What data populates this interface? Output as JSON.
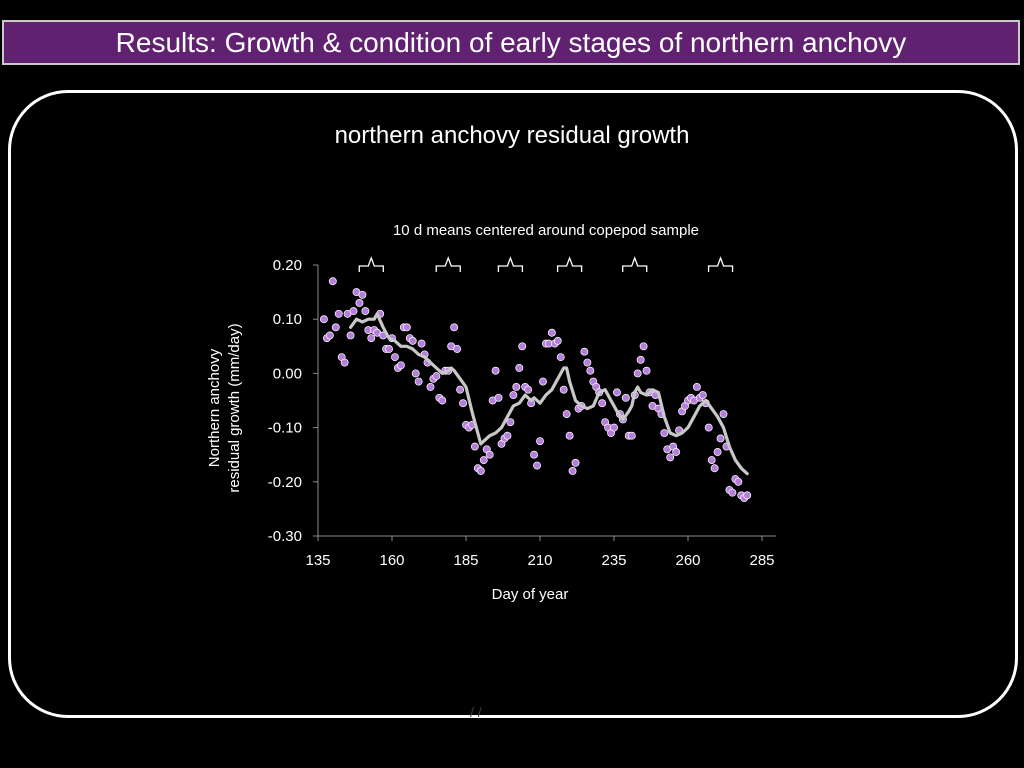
{
  "header": {
    "title": "Results: Growth & condition of early stages of northern anchovy"
  },
  "chart_data": {
    "type": "scatter",
    "title": "northern anchovy residual growth",
    "annotation": "10 d means centered around copepod sample",
    "xlabel": "Day of year",
    "ylabel_lines": [
      "Northern anchovy",
      "residual growth (mm/day)"
    ],
    "xlim": [
      135,
      285
    ],
    "ylim": [
      -0.3,
      0.2
    ],
    "xticks": [
      135,
      160,
      185,
      210,
      235,
      260,
      285
    ],
    "yticks": [
      0.2,
      0.1,
      0.0,
      -0.1,
      -0.2,
      -0.3
    ],
    "ytick_labels": [
      "0.20",
      "0.10",
      "0.00",
      "-0.10",
      "-0.20",
      "-0.30"
    ],
    "grid": false,
    "bracket_centers": [
      153,
      179,
      200,
      220,
      242,
      271
    ],
    "series": [
      {
        "type": "scatter",
        "color": "#b57edc",
        "points": [
          [
            137,
            0.1
          ],
          [
            138,
            0.065
          ],
          [
            139,
            0.07
          ],
          [
            140,
            0.17
          ],
          [
            141,
            0.085
          ],
          [
            142,
            0.11
          ],
          [
            143,
            0.03
          ],
          [
            144,
            0.02
          ],
          [
            145,
            0.11
          ],
          [
            146,
            0.07
          ],
          [
            147,
            0.115
          ],
          [
            148,
            0.15
          ],
          [
            149,
            0.13
          ],
          [
            150,
            0.145
          ],
          [
            151,
            0.115
          ],
          [
            152,
            0.08
          ],
          [
            153,
            0.065
          ],
          [
            154,
            0.08
          ],
          [
            155,
            0.075
          ],
          [
            156,
            0.11
          ],
          [
            157,
            0.07
          ],
          [
            158,
            0.045
          ],
          [
            159,
            0.045
          ],
          [
            160,
            0.065
          ],
          [
            161,
            0.03
          ],
          [
            162,
            0.01
          ],
          [
            163,
            0.015
          ],
          [
            164,
            0.085
          ],
          [
            165,
            0.085
          ],
          [
            166,
            0.065
          ],
          [
            167,
            0.06
          ],
          [
            168,
            0.0
          ],
          [
            169,
            -0.015
          ],
          [
            170,
            0.055
          ],
          [
            171,
            0.035
          ],
          [
            172,
            0.02
          ],
          [
            173,
            -0.025
          ],
          [
            174,
            -0.01
          ],
          [
            175,
            -0.005
          ],
          [
            176,
            -0.045
          ],
          [
            177,
            -0.05
          ],
          [
            178,
            0.005
          ],
          [
            179,
            0.005
          ],
          [
            180,
            0.05
          ],
          [
            181,
            0.085
          ],
          [
            182,
            0.045
          ],
          [
            183,
            -0.03
          ],
          [
            184,
            -0.055
          ],
          [
            185,
            -0.095
          ],
          [
            186,
            -0.1
          ],
          [
            187,
            -0.095
          ],
          [
            188,
            -0.135
          ],
          [
            189,
            -0.175
          ],
          [
            190,
            -0.18
          ],
          [
            191,
            -0.16
          ],
          [
            192,
            -0.14
          ],
          [
            193,
            -0.15
          ],
          [
            194,
            -0.05
          ],
          [
            195,
            0.005
          ],
          [
            196,
            -0.045
          ],
          [
            197,
            -0.13
          ],
          [
            198,
            -0.12
          ],
          [
            199,
            -0.115
          ],
          [
            200,
            -0.09
          ],
          [
            201,
            -0.04
          ],
          [
            202,
            -0.025
          ],
          [
            203,
            0.01
          ],
          [
            204,
            0.05
          ],
          [
            205,
            -0.025
          ],
          [
            206,
            -0.03
          ],
          [
            207,
            -0.055
          ],
          [
            208,
            -0.15
          ],
          [
            209,
            -0.17
          ],
          [
            210,
            -0.125
          ],
          [
            211,
            -0.015
          ],
          [
            212,
            0.055
          ],
          [
            213,
            0.055
          ],
          [
            214,
            0.075
          ],
          [
            215,
            0.055
          ],
          [
            216,
            0.06
          ],
          [
            217,
            0.03
          ],
          [
            218,
            -0.03
          ],
          [
            219,
            -0.075
          ],
          [
            220,
            -0.115
          ],
          [
            221,
            -0.18
          ],
          [
            222,
            -0.165
          ],
          [
            223,
            -0.065
          ],
          [
            224,
            -0.06
          ],
          [
            225,
            0.04
          ],
          [
            226,
            0.02
          ],
          [
            227,
            0.005
          ],
          [
            228,
            -0.015
          ],
          [
            229,
            -0.025
          ],
          [
            230,
            -0.035
          ],
          [
            231,
            -0.055
          ],
          [
            232,
            -0.09
          ],
          [
            233,
            -0.1
          ],
          [
            234,
            -0.11
          ],
          [
            235,
            -0.1
          ],
          [
            236,
            -0.035
          ],
          [
            237,
            -0.075
          ],
          [
            238,
            -0.085
          ],
          [
            239,
            -0.045
          ],
          [
            240,
            -0.115
          ],
          [
            241,
            -0.115
          ],
          [
            242,
            -0.04
          ],
          [
            243,
            0.0
          ],
          [
            244,
            0.025
          ],
          [
            245,
            0.05
          ],
          [
            246,
            0.005
          ],
          [
            247,
            -0.035
          ],
          [
            248,
            -0.06
          ],
          [
            249,
            -0.04
          ],
          [
            250,
            -0.065
          ],
          [
            251,
            -0.075
          ],
          [
            252,
            -0.11
          ],
          [
            253,
            -0.14
          ],
          [
            254,
            -0.155
          ],
          [
            255,
            -0.135
          ],
          [
            256,
            -0.145
          ],
          [
            257,
            -0.105
          ],
          [
            258,
            -0.07
          ],
          [
            259,
            -0.06
          ],
          [
            260,
            -0.05
          ],
          [
            261,
            -0.045
          ],
          [
            262,
            -0.05
          ],
          [
            263,
            -0.025
          ],
          [
            264,
            -0.045
          ],
          [
            265,
            -0.04
          ],
          [
            266,
            -0.055
          ],
          [
            267,
            -0.1
          ],
          [
            268,
            -0.16
          ],
          [
            269,
            -0.175
          ],
          [
            270,
            -0.145
          ],
          [
            271,
            -0.12
          ],
          [
            272,
            -0.075
          ],
          [
            273,
            -0.135
          ],
          [
            274,
            -0.215
          ],
          [
            275,
            -0.22
          ],
          [
            276,
            -0.195
          ],
          [
            277,
            -0.2
          ],
          [
            278,
            -0.225
          ],
          [
            279,
            -0.23
          ],
          [
            280,
            -0.225
          ]
        ]
      },
      {
        "type": "line",
        "color": "#c8c8c8",
        "points": [
          [
            146,
            0.085
          ],
          [
            148,
            0.1
          ],
          [
            150,
            0.095
          ],
          [
            152,
            0.1
          ],
          [
            154,
            0.1
          ],
          [
            155,
            0.11
          ],
          [
            157,
            0.085
          ],
          [
            159,
            0.065
          ],
          [
            161,
            0.06
          ],
          [
            163,
            0.05
          ],
          [
            165,
            0.05
          ],
          [
            167,
            0.045
          ],
          [
            169,
            0.035
          ],
          [
            171,
            0.03
          ],
          [
            173,
            0.02
          ],
          [
            175,
            0.01
          ],
          [
            177,
            0.0
          ],
          [
            179,
            0.005
          ],
          [
            180,
            0.01
          ],
          [
            181,
            0.005
          ],
          [
            183,
            -0.01
          ],
          [
            185,
            -0.025
          ],
          [
            187,
            -0.07
          ],
          [
            189,
            -0.11
          ],
          [
            190,
            -0.13
          ],
          [
            191,
            -0.125
          ],
          [
            193,
            -0.115
          ],
          [
            195,
            -0.11
          ],
          [
            197,
            -0.1
          ],
          [
            199,
            -0.08
          ],
          [
            201,
            -0.06
          ],
          [
            203,
            -0.055
          ],
          [
            205,
            -0.04
          ],
          [
            207,
            -0.05
          ],
          [
            208,
            -0.045
          ],
          [
            210,
            -0.055
          ],
          [
            212,
            -0.04
          ],
          [
            214,
            -0.03
          ],
          [
            216,
            -0.01
          ],
          [
            218,
            0.01
          ],
          [
            219,
            0.01
          ],
          [
            220,
            -0.015
          ],
          [
            222,
            -0.05
          ],
          [
            224,
            -0.06
          ],
          [
            226,
            -0.065
          ],
          [
            228,
            -0.06
          ],
          [
            230,
            -0.035
          ],
          [
            232,
            -0.03
          ],
          [
            234,
            -0.05
          ],
          [
            236,
            -0.07
          ],
          [
            238,
            -0.085
          ],
          [
            240,
            -0.07
          ],
          [
            241,
            -0.06
          ],
          [
            242,
            -0.035
          ],
          [
            243,
            -0.025
          ],
          [
            244,
            -0.035
          ],
          [
            246,
            -0.04
          ],
          [
            248,
            -0.03
          ],
          [
            250,
            -0.035
          ],
          [
            252,
            -0.08
          ],
          [
            254,
            -0.11
          ],
          [
            256,
            -0.115
          ],
          [
            258,
            -0.11
          ],
          [
            260,
            -0.1
          ],
          [
            262,
            -0.08
          ],
          [
            264,
            -0.06
          ],
          [
            266,
            -0.05
          ],
          [
            268,
            -0.065
          ],
          [
            270,
            -0.08
          ],
          [
            272,
            -0.1
          ],
          [
            274,
            -0.135
          ],
          [
            276,
            -0.16
          ],
          [
            278,
            -0.175
          ],
          [
            280,
            -0.185
          ]
        ]
      }
    ]
  },
  "behind_text": "/ /"
}
